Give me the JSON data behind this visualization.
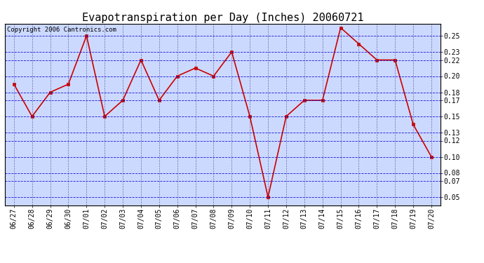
{
  "title": "Evapotranspiration per Day (Inches) 20060721",
  "copyright": "Copyright 2006 Cantronics.com",
  "dates": [
    "06/27",
    "06/28",
    "06/29",
    "06/30",
    "07/01",
    "07/02",
    "07/03",
    "07/04",
    "07/05",
    "07/06",
    "07/07",
    "07/08",
    "07/09",
    "07/10",
    "07/11",
    "07/12",
    "07/13",
    "07/14",
    "07/15",
    "07/16",
    "07/17",
    "07/18",
    "07/19",
    "07/20"
  ],
  "values": [
    0.19,
    0.15,
    0.18,
    0.19,
    0.25,
    0.15,
    0.17,
    0.22,
    0.17,
    0.2,
    0.21,
    0.2,
    0.23,
    0.15,
    0.05,
    0.15,
    0.17,
    0.17,
    0.26,
    0.24,
    0.22,
    0.22,
    0.14,
    0.1
  ],
  "line_color": "#cc0000",
  "marker_color": "#cc0000",
  "bg_color": "#ccd9ff",
  "outer_bg": "#ffffff",
  "grid_color_h": "#0000cc",
  "grid_color_v": "#555599",
  "title_fontsize": 11,
  "copyright_fontsize": 6.5,
  "tick_fontsize": 7,
  "yticks": [
    0.05,
    0.07,
    0.08,
    0.1,
    0.12,
    0.13,
    0.15,
    0.17,
    0.18,
    0.2,
    0.22,
    0.23,
    0.25
  ],
  "ymin": 0.04,
  "ymax": 0.265
}
